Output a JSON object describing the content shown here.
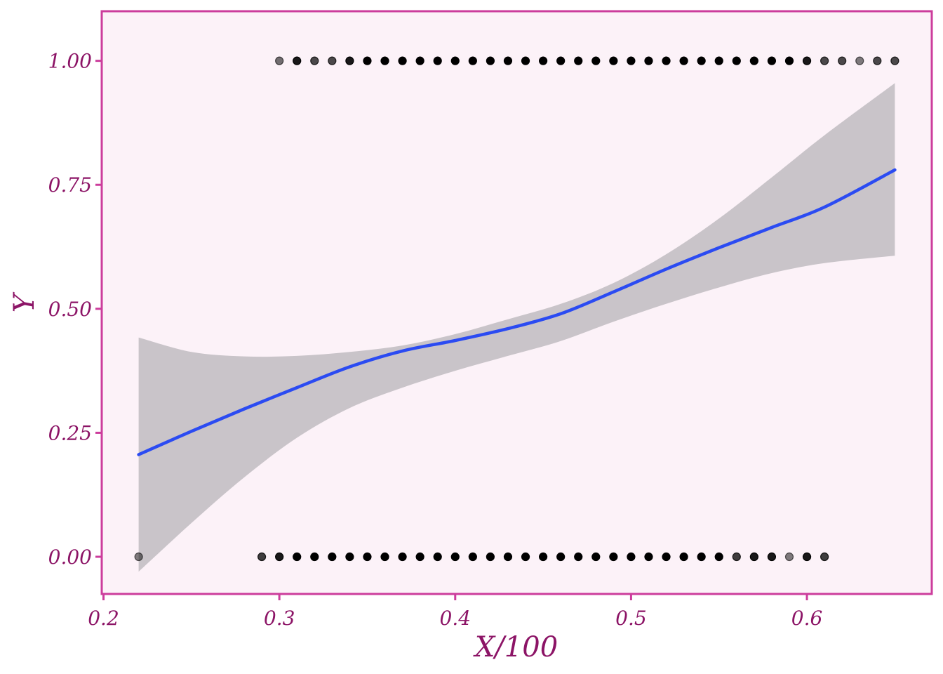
{
  "chart_data": {
    "type": "scatter",
    "xlabel": "X/100",
    "ylabel": "Y",
    "xlim": [
      0.199,
      0.671
    ],
    "ylim": [
      -0.075,
      1.1
    ],
    "x_ticks": [
      0.2,
      0.3,
      0.4,
      0.5,
      0.6
    ],
    "x_tick_labels": [
      "0.2",
      "0.3",
      "0.4",
      "0.5",
      "0.6"
    ],
    "y_ticks": [
      0,
      0.25,
      0.5,
      0.75,
      1.0
    ],
    "y_tick_labels": [
      "0.00",
      "0.25",
      "0.50",
      "0.75",
      "1.00"
    ],
    "grid": false,
    "legend": "none",
    "colors": {
      "panel_bg": "#fcf2f8",
      "frame": "#cc3d9c",
      "text": "#8c1466",
      "points": "#000000",
      "fit_line": "#2b4bf2",
      "ribbon": "#c9c4c9"
    },
    "series": [
      {
        "kind": "points",
        "y": 1,
        "x": [
          0.3,
          0.31,
          0.32,
          0.33,
          0.34,
          0.35,
          0.36,
          0.37,
          0.38,
          0.39,
          0.4,
          0.41,
          0.42,
          0.43,
          0.44,
          0.45,
          0.46,
          0.47,
          0.48,
          0.49,
          0.5,
          0.51,
          0.52,
          0.53,
          0.54,
          0.55,
          0.56,
          0.57,
          0.58,
          0.59,
          0.6,
          0.61,
          0.62,
          0.63,
          0.64,
          0.65
        ],
        "opacity": [
          0.55,
          0.9,
          0.7,
          0.7,
          0.9,
          1,
          1,
          1,
          1,
          1,
          1,
          1,
          1,
          1,
          1,
          1,
          1,
          1,
          1,
          1,
          1,
          1,
          1,
          1,
          1,
          1,
          1,
          1,
          1,
          1,
          0.9,
          0.7,
          0.7,
          0.5,
          0.7,
          0.7
        ]
      },
      {
        "kind": "points",
        "y": 0,
        "x": [
          0.22,
          0.29,
          0.3,
          0.31,
          0.32,
          0.33,
          0.34,
          0.35,
          0.36,
          0.37,
          0.38,
          0.39,
          0.4,
          0.41,
          0.42,
          0.43,
          0.44,
          0.45,
          0.46,
          0.47,
          0.48,
          0.49,
          0.5,
          0.51,
          0.52,
          0.53,
          0.54,
          0.55,
          0.56,
          0.57,
          0.58,
          0.59,
          0.6,
          0.61
        ],
        "opacity": [
          0.5,
          0.75,
          0.9,
          1,
          1,
          1,
          1,
          1,
          1,
          1,
          1,
          1,
          1,
          1,
          1,
          1,
          1,
          1,
          1,
          1,
          1,
          1,
          1,
          1,
          1,
          1,
          1,
          1,
          0.75,
          0.9,
          0.9,
          0.5,
          0.9,
          0.75
        ]
      },
      {
        "kind": "smooth",
        "x": [
          0.22,
          0.25,
          0.28,
          0.31,
          0.34,
          0.37,
          0.4,
          0.43,
          0.46,
          0.49,
          0.52,
          0.55,
          0.58,
          0.61,
          0.65
        ],
        "y": [
          0.206,
          0.253,
          0.298,
          0.341,
          0.383,
          0.415,
          0.436,
          0.46,
          0.49,
          0.534,
          0.58,
          0.623,
          0.664,
          0.705,
          0.78
        ],
        "lower": [
          -0.03,
          0.068,
          0.16,
          0.24,
          0.3,
          0.341,
          0.375,
          0.405,
          0.435,
          0.474,
          0.51,
          0.543,
          0.572,
          0.592,
          0.607
        ],
        "upper": [
          0.442,
          0.413,
          0.404,
          0.405,
          0.413,
          0.426,
          0.449,
          0.479,
          0.51,
          0.552,
          0.61,
          0.682,
          0.765,
          0.85,
          0.955
        ]
      }
    ]
  }
}
